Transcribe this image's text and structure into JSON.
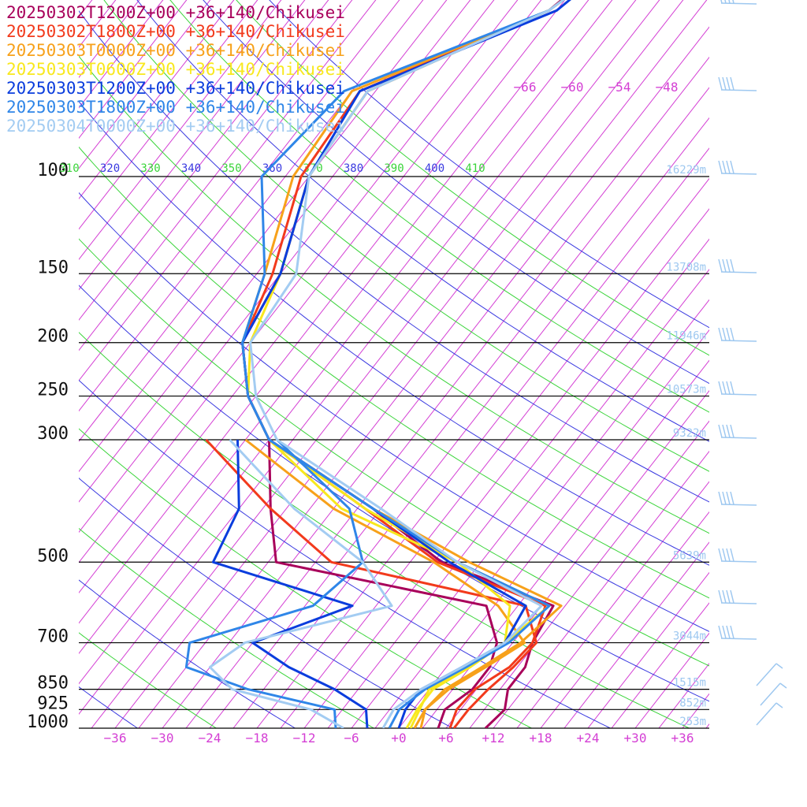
{
  "chart_data": {
    "type": "skew-t",
    "colors": {
      "isotherm": "#d43fd4",
      "dry_adiabat_blue": "#3a3ae0",
      "dry_adiabat_green": "#3ad43a",
      "isobar": "#000000",
      "height_label": "#9ec8f0",
      "temp_tick": "#d43fd4"
    },
    "pressure_levels": [
      100,
      150,
      200,
      250,
      300,
      500,
      700,
      850,
      925,
      1000
    ],
    "pressure_labels": [
      "100",
      "150",
      "200",
      "250",
      "300",
      "500",
      "700",
      "850",
      "925",
      "1000"
    ],
    "heights": [
      {
        "p": 100,
        "label": "16229m"
      },
      {
        "p": 150,
        "label": "13708m"
      },
      {
        "p": 200,
        "label": "11946m"
      },
      {
        "p": 250,
        "label": "10573m"
      },
      {
        "p": 300,
        "label": "9322m"
      },
      {
        "p": 500,
        "label": "5639m"
      },
      {
        "p": 700,
        "label": "3044m"
      },
      {
        "p": 850,
        "label": "1515m"
      },
      {
        "p": 925,
        "label": "852m"
      },
      {
        "p": 1000,
        "label": "253m"
      }
    ],
    "temp_ticks": [
      {
        "t": -36,
        "label": "−36"
      },
      {
        "t": -30,
        "label": "−30"
      },
      {
        "t": -24,
        "label": "−24"
      },
      {
        "t": -18,
        "label": "−18"
      },
      {
        "t": -12,
        "label": "−12"
      },
      {
        "t": -6,
        "label": "−6"
      },
      {
        "t": 0,
        "label": "+0"
      },
      {
        "t": 6,
        "label": "+6"
      },
      {
        "t": 12,
        "label": "+12"
      },
      {
        "t": 18,
        "label": "+18"
      },
      {
        "t": 24,
        "label": "+24"
      },
      {
        "t": 30,
        "label": "+30"
      },
      {
        "t": 36,
        "label": "+36"
      }
    ],
    "upper_temp_labels": [
      "−66",
      "−60",
      "−54",
      "−48"
    ],
    "theta_labels": [
      {
        "theta": 310,
        "label": "310"
      },
      {
        "theta": 320,
        "label": "320"
      },
      {
        "theta": 330,
        "label": "330"
      },
      {
        "theta": 340,
        "label": "340"
      },
      {
        "theta": 350,
        "label": "350"
      },
      {
        "theta": 360,
        "label": "360"
      },
      {
        "theta": 370,
        "label": "370"
      },
      {
        "theta": 380,
        "label": "380"
      },
      {
        "theta": 390,
        "label": "390"
      },
      {
        "theta": 400,
        "label": "400"
      },
      {
        "theta": 410,
        "label": "410"
      }
    ],
    "series": [
      {
        "name": "20250302T1200Z+00 +36+140/Chikusei",
        "color": "#a8005a",
        "temperature": [
          [
            1000,
            11.0
          ],
          [
            925,
            11.6
          ],
          [
            850,
            10.0
          ],
          [
            775,
            10.0
          ],
          [
            700,
            8.5
          ],
          [
            600,
            7.5
          ],
          [
            500,
            -11.0
          ],
          [
            400,
            -25.0
          ],
          [
            300,
            -45.0
          ],
          [
            250,
            -52.0
          ],
          [
            200,
            -58.0
          ],
          [
            150,
            -60.0
          ],
          [
            100,
            -66.0
          ],
          [
            70,
            -67.0
          ],
          [
            50,
            -52.0
          ],
          [
            40,
            -49.0
          ]
        ],
        "dewpoint": [
          [
            1000,
            5.0
          ],
          [
            925,
            4.0
          ],
          [
            850,
            5.5
          ],
          [
            775,
            5.5
          ],
          [
            700,
            4.0
          ],
          [
            600,
            -1.0
          ],
          [
            500,
            -32.0
          ],
          [
            400,
            -38.0
          ],
          [
            300,
            -45.0
          ]
        ]
      },
      {
        "name": "20250302T1800Z+00 +36+140/Chikusei",
        "color": "#f23a1c",
        "temperature": [
          [
            1000,
            6.5
          ],
          [
            925,
            5.5
          ],
          [
            850,
            5.8
          ],
          [
            775,
            8.0
          ],
          [
            700,
            8.5
          ],
          [
            600,
            6.5
          ],
          [
            500,
            -11.5
          ],
          [
            400,
            -26.0
          ],
          [
            300,
            -45.0
          ],
          [
            250,
            -52.0
          ],
          [
            200,
            -58.0
          ],
          [
            150,
            -61.0
          ],
          [
            100,
            -67.0
          ],
          [
            70,
            -68.0
          ],
          [
            50,
            -52.0
          ],
          [
            40,
            -48.0
          ]
        ],
        "dewpoint": [
          [
            1000,
            7.0
          ],
          [
            925,
            7.0
          ],
          [
            850,
            7.5
          ],
          [
            775,
            8.5
          ],
          [
            700,
            9.0
          ],
          [
            600,
            4.0
          ],
          [
            500,
            -25.0
          ],
          [
            400,
            -38.0
          ],
          [
            300,
            -53.0
          ]
        ]
      },
      {
        "name": "20250303T0000Z+00 +36+140/Chikusei",
        "color": "#f7a11a",
        "temperature": [
          [
            1000,
            2.8
          ],
          [
            925,
            1.5
          ],
          [
            850,
            2.0
          ],
          [
            775,
            4.5
          ],
          [
            700,
            7.0
          ],
          [
            600,
            8.5
          ],
          [
            500,
            -7.5
          ],
          [
            400,
            -25.0
          ],
          [
            300,
            -45.0
          ],
          [
            250,
            -52.0
          ],
          [
            200,
            -58.0
          ],
          [
            150,
            -62.0
          ],
          [
            100,
            -68.0
          ],
          [
            70,
            -69.0
          ],
          [
            50,
            -52.0
          ],
          [
            40,
            -48.0
          ]
        ],
        "dewpoint": [
          [
            1000,
            2.0
          ],
          [
            925,
            1.5
          ],
          [
            850,
            2.5
          ],
          [
            775,
            5.0
          ],
          [
            700,
            7.5
          ],
          [
            600,
            0.5
          ],
          [
            500,
            -12.0
          ],
          [
            400,
            -30.0
          ],
          [
            300,
            -48.0
          ]
        ]
      },
      {
        "name": "20250303T0600Z+00 +36+140/Chikusei",
        "color": "#f8e81e",
        "temperature": [
          [
            1000,
            1.5
          ],
          [
            925,
            0.8
          ],
          [
            850,
            0.0
          ],
          [
            775,
            3.0
          ],
          [
            700,
            5.0
          ],
          [
            600,
            7.0
          ],
          [
            500,
            -9.0
          ],
          [
            400,
            -26.0
          ],
          [
            300,
            -45.0
          ],
          [
            250,
            -52.0
          ],
          [
            200,
            -57.0
          ],
          [
            150,
            -60.0
          ],
          [
            100,
            -66.0
          ],
          [
            70,
            -67.0
          ],
          [
            50,
            -52.0
          ],
          [
            40,
            -48.0
          ]
        ],
        "dewpoint": [
          [
            1000,
            1.0
          ],
          [
            925,
            0.5
          ],
          [
            850,
            0.5
          ],
          [
            775,
            3.0
          ],
          [
            700,
            5.0
          ],
          [
            600,
            2.0
          ],
          [
            500,
            -9.0
          ],
          [
            400,
            -29.0
          ],
          [
            300,
            -45.0
          ]
        ]
      },
      {
        "name": "20250303T1200Z+00 +36+140/Chikusei",
        "color": "#0a3ddd",
        "temperature": [
          [
            1000,
            0.0
          ],
          [
            925,
            -1.0
          ],
          [
            850,
            -1.0
          ],
          [
            775,
            2.0
          ],
          [
            700,
            5.0
          ],
          [
            600,
            4.0
          ],
          [
            500,
            -10.0
          ],
          [
            400,
            -25.0
          ],
          [
            300,
            -45.0
          ],
          [
            250,
            -52.0
          ],
          [
            200,
            -58.0
          ],
          [
            150,
            -60.0
          ],
          [
            100,
            -66.0
          ],
          [
            70,
            -68.0
          ],
          [
            50,
            -51.0
          ],
          [
            40,
            -48.0
          ]
        ],
        "dewpoint": [
          [
            1000,
            -4.0
          ],
          [
            925,
            -6.0
          ],
          [
            850,
            -12.0
          ],
          [
            775,
            -20.0
          ],
          [
            700,
            -27.0
          ],
          [
            600,
            -18.0
          ],
          [
            500,
            -40.0
          ],
          [
            400,
            -42.0
          ],
          [
            300,
            -49.0
          ]
        ]
      },
      {
        "name": "20250303T1800Z+00 +36+140/Chikusei",
        "color": "#2f86e8",
        "temperature": [
          [
            1000,
            -1.2
          ],
          [
            925,
            -1.8
          ],
          [
            850,
            -0.5
          ],
          [
            775,
            2.5
          ],
          [
            700,
            5.5
          ],
          [
            600,
            7.0
          ],
          [
            500,
            -9.0
          ],
          [
            400,
            -25.0
          ],
          [
            300,
            -45.0
          ],
          [
            250,
            -52.0
          ],
          [
            200,
            -58.0
          ],
          [
            150,
            -62.0
          ],
          [
            100,
            -72.0
          ],
          [
            70,
            -70.0
          ],
          [
            50,
            -52.0
          ],
          [
            40,
            -48.0
          ]
        ],
        "dewpoint": [
          [
            1000,
            -8.0
          ],
          [
            925,
            -10.0
          ],
          [
            850,
            -23.0
          ],
          [
            775,
            -33.0
          ],
          [
            700,
            -35.0
          ],
          [
            600,
            -23.0
          ],
          [
            500,
            -21.0
          ],
          [
            400,
            -28.0
          ],
          [
            300,
            -44.0
          ]
        ]
      },
      {
        "name": "20250304T0000Z+00 +36+140/Chikusei",
        "color": "#a3ccf2",
        "temperature": [
          [
            1000,
            -2.0
          ],
          [
            925,
            -2.5
          ],
          [
            850,
            -1.0
          ],
          [
            775,
            2.0
          ],
          [
            700,
            5.0
          ],
          [
            600,
            6.0
          ],
          [
            500,
            -9.0
          ],
          [
            400,
            -24.0
          ],
          [
            300,
            -44.0
          ],
          [
            250,
            -51.0
          ],
          [
            200,
            -57.0
          ],
          [
            150,
            -58.0
          ],
          [
            100,
            -66.0
          ],
          [
            70,
            -67.0
          ],
          [
            50,
            -52.0
          ],
          [
            40,
            -48.0
          ]
        ],
        "dewpoint": [
          [
            1000,
            -7.0
          ],
          [
            925,
            -13.0
          ],
          [
            850,
            -25.0
          ],
          [
            775,
            -30.0
          ],
          [
            700,
            -28.0
          ],
          [
            600,
            -13.0
          ],
          [
            500,
            -21.0
          ],
          [
            400,
            -35.0
          ],
          [
            300,
            -50.0
          ]
        ]
      }
    ],
    "wind_color": "#9ec8f0"
  }
}
